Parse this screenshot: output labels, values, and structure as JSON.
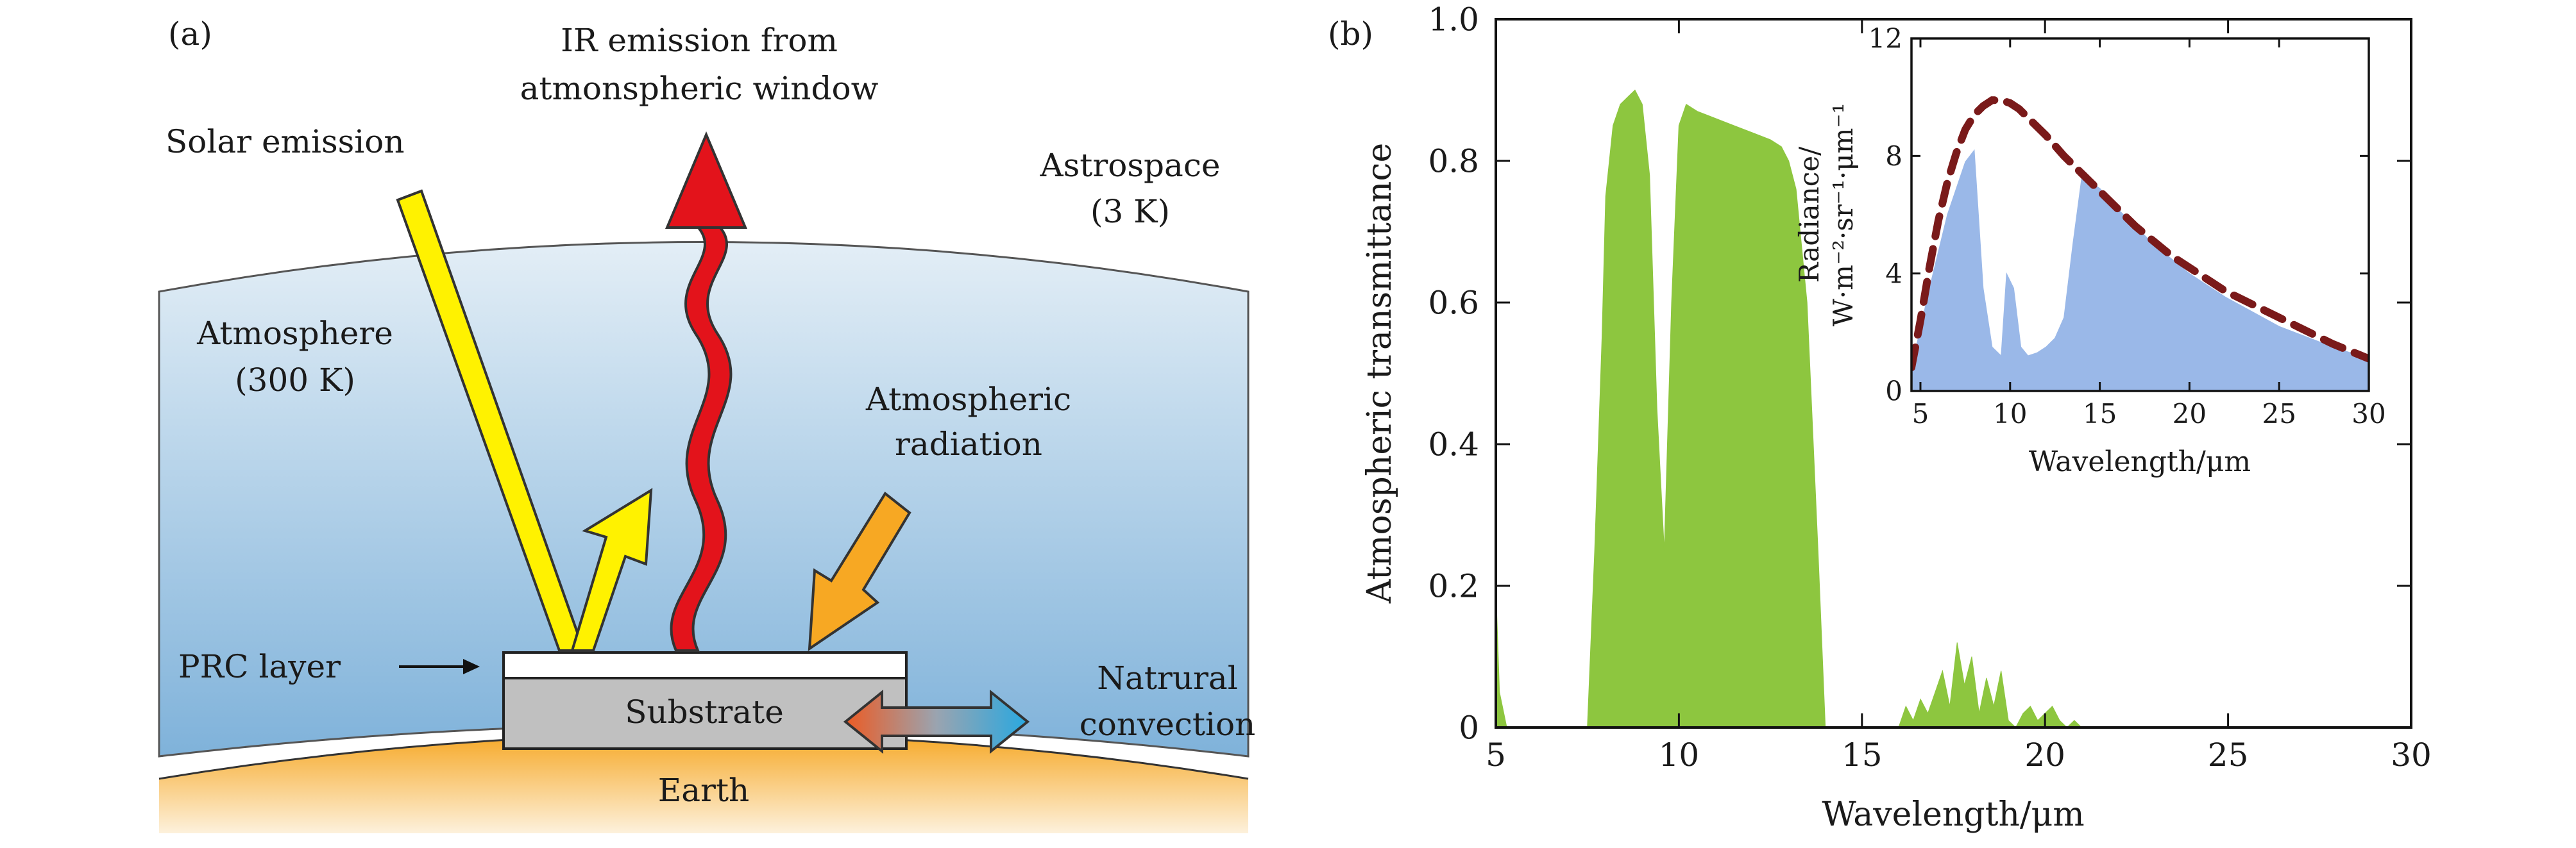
{
  "panel_a": {
    "panel_label": "(a)",
    "ir_emission_label": [
      "IR emission from",
      "atmonspheric window"
    ],
    "solar_emission_label": "Solar emission",
    "astrospace_label": [
      "Astrospace",
      "(3 K)"
    ],
    "atmosphere_label": [
      "Atmosphere",
      "(300 K)"
    ],
    "atmospheric_radiation_label": [
      "Atmospheric",
      "radiation"
    ],
    "prc_layer_label": "PRC layer",
    "substrate_label": "Substrate",
    "natural_convection_label": [
      "Natrural",
      "convection"
    ],
    "earth_label": "Earth",
    "colors": {
      "sky_top": "#e3eef6",
      "sky_bottom": "#7fb2da",
      "earth_top": "#f6a826",
      "earth_bottom": "#fdf1dc",
      "solar_arrow": "#fff200",
      "ir_arrow": "#e3131b",
      "atm_radiation_arrow": "#f7a823",
      "convection_hot": "#ec5b24",
      "convection_cold": "#29a8e0",
      "substrate": "#c0c0c0",
      "prc_layer": "#ffffff"
    }
  },
  "panel_b": {
    "panel_label": "(b)",
    "chart_data": [
      {
        "type": "area",
        "xlabel": "Wavelength/μm",
        "ylabel": "Atmospheric transmittance",
        "xlim": [
          5,
          30
        ],
        "ylim": [
          0,
          1.0
        ],
        "xticks": [
          5,
          10,
          15,
          20,
          25,
          30
        ],
        "yticks": [
          0,
          0.2,
          0.4,
          0.6,
          0.8,
          1.0
        ],
        "ytick_labels": [
          "0",
          "0.2",
          "0.4",
          "0.6",
          "0.8",
          "1.0"
        ],
        "color": "#8dc63f",
        "x": [
          5.0,
          5.1,
          5.3,
          7.5,
          7.7,
          7.9,
          8.0,
          8.2,
          8.4,
          8.6,
          8.8,
          9.0,
          9.2,
          9.4,
          9.6,
          9.8,
          10.0,
          10.2,
          10.5,
          11.0,
          11.5,
          12.0,
          12.5,
          12.8,
          13.0,
          13.2,
          13.5,
          13.8,
          14.0,
          16.0,
          16.2,
          16.4,
          16.6,
          16.8,
          17.0,
          17.2,
          17.4,
          17.6,
          17.8,
          18.0,
          18.2,
          18.4,
          18.6,
          18.8,
          19.0,
          19.2,
          19.4,
          19.6,
          19.8,
          20.0,
          20.2,
          20.4,
          20.6,
          20.8,
          21.0,
          30.0
        ],
        "y": [
          0.2,
          0.05,
          0.0,
          0.0,
          0.25,
          0.55,
          0.75,
          0.85,
          0.88,
          0.89,
          0.9,
          0.88,
          0.78,
          0.45,
          0.25,
          0.6,
          0.85,
          0.88,
          0.87,
          0.86,
          0.85,
          0.84,
          0.83,
          0.82,
          0.8,
          0.76,
          0.6,
          0.25,
          0.0,
          0.0,
          0.03,
          0.01,
          0.04,
          0.02,
          0.05,
          0.08,
          0.03,
          0.12,
          0.06,
          0.1,
          0.02,
          0.07,
          0.03,
          0.08,
          0.01,
          0.0,
          0.02,
          0.03,
          0.01,
          0.02,
          0.03,
          0.01,
          0.0,
          0.01,
          0.0,
          0.0
        ]
      },
      {
        "type": "area",
        "inset": true,
        "xlabel": "Wavelength/μm",
        "ylabel": [
          "Radiance/",
          "W·m⁻²·sr⁻¹·μm⁻¹"
        ],
        "xlim": [
          4.5,
          30
        ],
        "ylim": [
          0,
          12
        ],
        "xticks": [
          5,
          10,
          15,
          20,
          25,
          30
        ],
        "yticks": [
          0,
          4,
          8,
          12
        ],
        "series": [
          {
            "color": "#9ab8e8",
            "x": [
              4.5,
              5.5,
              6.5,
              7.5,
              8.0,
              8.5,
              9.0,
              9.5,
              9.8,
              10.2,
              10.6,
              11.0,
              11.5,
              12.0,
              12.5,
              13.0,
              13.5,
              14.0,
              15.0,
              16.0,
              18.0,
              20.0,
              22.0,
              25.0,
              28.0,
              30.0
            ],
            "y": [
              0.8,
              3.5,
              6.0,
              7.8,
              8.2,
              3.5,
              1.5,
              1.2,
              4.0,
              3.5,
              1.5,
              1.2,
              1.3,
              1.5,
              1.8,
              2.5,
              5.0,
              7.3,
              6.9,
              6.2,
              5.0,
              4.0,
              3.2,
              2.2,
              1.5,
              1.1
            ]
          },
          {
            "color": "#7a1a1a",
            "dashed": true,
            "x": [
              4.5,
              5.0,
              5.5,
              6.0,
              6.5,
              7.0,
              7.5,
              8.0,
              8.5,
              9.0,
              9.5,
              10.0,
              10.5,
              11.0,
              12.0,
              13.0,
              14.0,
              15.0,
              16.0,
              17.0,
              18.0,
              19.0,
              20.0,
              22.0,
              24.0,
              26.0,
              28.0,
              30.0
            ],
            "y": [
              0.8,
              2.4,
              4.2,
              5.8,
              7.1,
              8.1,
              8.9,
              9.4,
              9.7,
              9.9,
              9.9,
              9.8,
              9.6,
              9.3,
              8.7,
              8.0,
              7.4,
              6.8,
              6.2,
              5.6,
              5.1,
              4.6,
              4.2,
              3.4,
              2.8,
              2.2,
              1.6,
              1.1
            ]
          }
        ]
      }
    ]
  }
}
